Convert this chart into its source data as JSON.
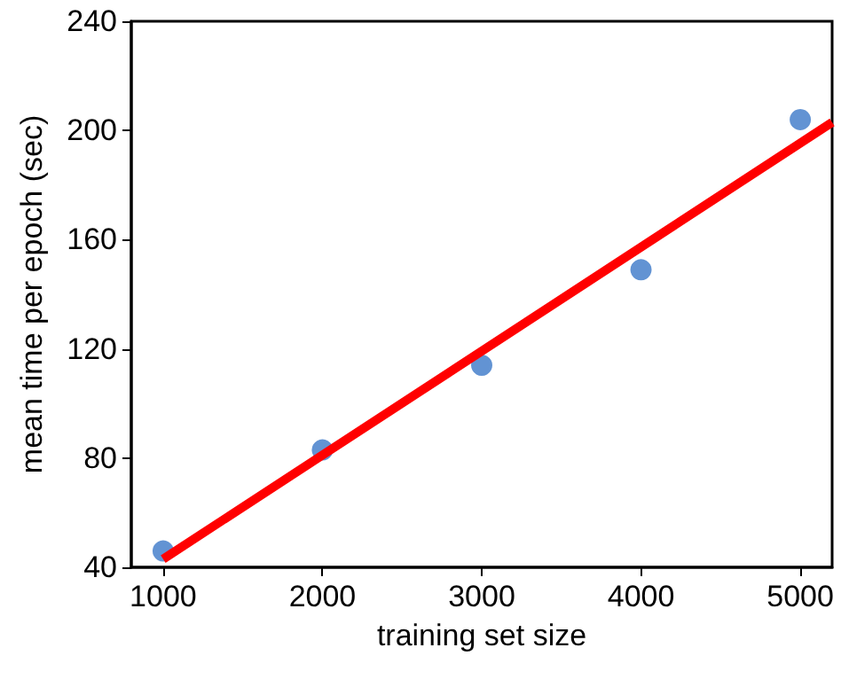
{
  "chart_data": {
    "type": "scatter",
    "xlabel": "training set size",
    "ylabel": "mean time per epoch (sec)",
    "xlim": [
      800,
      5200
    ],
    "xticks": [
      1000,
      2000,
      3000,
      4000,
      5000
    ],
    "ylim": [
      40,
      240
    ],
    "yticks": [
      40,
      80,
      120,
      160,
      200,
      240
    ],
    "grid": false,
    "marker": "circle",
    "series": [
      {
        "color": "#3b78c8",
        "x": [
          1000,
          2000,
          3000,
          4000,
          5000
        ],
        "values": [
          46,
          83,
          114,
          149,
          204
        ]
      },
      {
        "type": "line",
        "color": "#ff0000",
        "x": [
          1000,
          5200
        ],
        "values": [
          43,
          203
        ],
        "marker": "none",
        "line_style": "solid"
      }
    ]
  }
}
